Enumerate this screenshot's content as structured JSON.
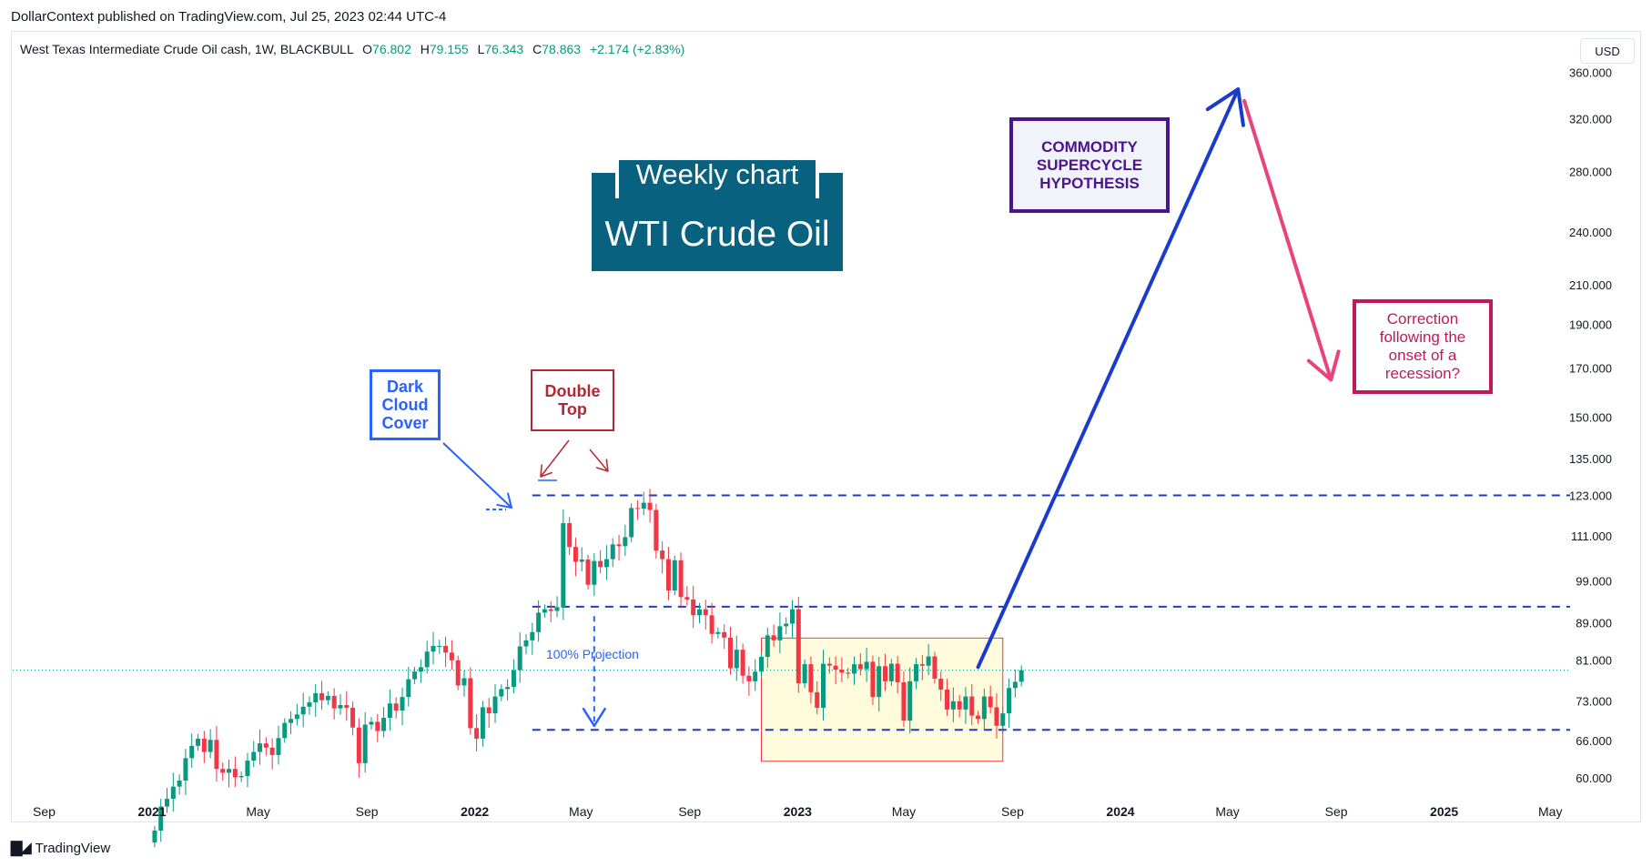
{
  "header": {
    "published_line": "DollarContext published on TradingView.com, Jul 25, 2023 02:44 UTC-4",
    "symbol": "West Texas Intermediate Crude Oil cash, 1W, BLACKBULL",
    "ohlc": {
      "o_label": "O",
      "o_value": "76.802",
      "h_label": "H",
      "h_value": "79.155",
      "l_label": "L",
      "l_value": "76.343",
      "c_label": "C",
      "c_value": "78.863",
      "change": "+2.174 (+2.83%)"
    },
    "currency_button": "USD"
  },
  "footer": {
    "logo_mark": "𝟭𝟳",
    "logo_text": "TradingView"
  },
  "title_box": {
    "subtitle": "Weekly chart",
    "title": "WTI Crude Oil"
  },
  "annotations": {
    "dark_cloud": "Dark\nCloud\nCover",
    "double_top": "Double\nTop",
    "supercycle": "COMMODITY\nSUPERCYCLE\nHYPOTHESIS",
    "correction": "Correction\nfollowing the\nonset of a\nrecession?",
    "projection": "100% Projection"
  },
  "colors": {
    "up": "#089981",
    "down": "#f23645",
    "level_line": "#1a3bcc",
    "supercycle_arrow": "#1a3bcc",
    "correction_arrow": "#e8437a",
    "range_fill": "#fffbdc",
    "range_border": "#f23645",
    "title_bg": "#08617f"
  },
  "chart_data": {
    "type": "candlestick",
    "scale": "log",
    "ylim": [
      56,
      375
    ],
    "y_ticks": [
      "360.000",
      "320.000",
      "280.000",
      "240.000",
      "210.000",
      "190.000",
      "170.000",
      "150.000",
      "135.000",
      "123.000",
      "111.000",
      "99.000",
      "89.000",
      "81.000",
      "73.000",
      "66.000",
      "60.000"
    ],
    "x_ticks": [
      {
        "label": "Sep",
        "bold": false,
        "date": "2020-09-01"
      },
      {
        "label": "2021",
        "bold": true,
        "date": "2021-01-01"
      },
      {
        "label": "May",
        "bold": false,
        "date": "2021-05-01"
      },
      {
        "label": "Sep",
        "bold": false,
        "date": "2021-09-01"
      },
      {
        "label": "2022",
        "bold": true,
        "date": "2022-01-01"
      },
      {
        "label": "May",
        "bold": false,
        "date": "2022-05-01"
      },
      {
        "label": "Sep",
        "bold": false,
        "date": "2022-09-01"
      },
      {
        "label": "2023",
        "bold": true,
        "date": "2023-01-01"
      },
      {
        "label": "May",
        "bold": false,
        "date": "2023-05-01"
      },
      {
        "label": "Sep",
        "bold": false,
        "date": "2023-09-01"
      },
      {
        "label": "2024",
        "bold": true,
        "date": "2024-01-01"
      },
      {
        "label": "May",
        "bold": false,
        "date": "2024-05-01"
      },
      {
        "label": "Sep",
        "bold": false,
        "date": "2024-09-01"
      },
      {
        "label": "2025",
        "bold": true,
        "date": "2025-01-01"
      },
      {
        "label": "May",
        "bold": false,
        "date": "2025-05-01"
      }
    ],
    "start_date": "2021-01-04",
    "closes": [
      52.5,
      55.8,
      56.9,
      58.7,
      59.6,
      63.1,
      65.1,
      66.3,
      64.1,
      66.1,
      61.4,
      60.8,
      61.4,
      60.1,
      60.3,
      62.7,
      64.1,
      65.5,
      64.8,
      63.6,
      66.4,
      69.0,
      69.7,
      70.5,
      71.9,
      72.7,
      74.4,
      73.1,
      73.9,
      71.6,
      72.2,
      71.7,
      68.2,
      62.3,
      68.7,
      69.2,
      67.6,
      69.9,
      72.5,
      71.2,
      73.7,
      77.1,
      78.6,
      79.5,
      82.7,
      83.9,
      83.9,
      82.5,
      80.9,
      75.9,
      77.3,
      68.1,
      66.3,
      71.8,
      70.7,
      73.8,
      75.2,
      75.6,
      78.9,
      83.8,
      85.1,
      86.9,
      91.3,
      92.1,
      91.7,
      92.6,
      114.6,
      107.9,
      103.9,
      104.5,
      98.0,
      104.1,
      102.5,
      104.6,
      108.6,
      108.1,
      110.6,
      119.1,
      118.9,
      120.7,
      118.5,
      106.9,
      104.6,
      96.6,
      104.3,
      95.0,
      94.4,
      90.7,
      92.1,
      90.7,
      86.5,
      86.9,
      85.7,
      79.3,
      83.1,
      77.8,
      76.7,
      78.6,
      81.6,
      86.2,
      85.1,
      88.2,
      88.8,
      92.1,
      76.3,
      80.1,
      74.6,
      71.7,
      80.2,
      79.8,
      79.0,
      78.4,
      78.2,
      80.1,
      79.1,
      80.6,
      73.7,
      79.7,
      76.7,
      80.2,
      76.5,
      69.4,
      76.7,
      80.1,
      79.8,
      81.7,
      77.2,
      75.1,
      71.4,
      72.9,
      71.4,
      73.8,
      70.3,
      69.7,
      73.8,
      71.8,
      68.5,
      70.7,
      75.4,
      76.6,
      78.9
    ],
    "levels": [
      123,
      92.7,
      67.8
    ],
    "range_box": {
      "x_start": "2022-11-21",
      "x_end": "2023-08-21",
      "y_low": 62.6,
      "y_high": 85.6
    },
    "projection_arrow": {
      "x": "2022-05-16",
      "y_from": 90.5,
      "y_to": 68.5
    },
    "supercycle_arrow": {
      "from": [
        "2023-07-24",
        79.5
      ],
      "to": [
        "2024-05-13",
        345
      ]
    },
    "correction_arrow": {
      "from": [
        "2024-05-20",
        335
      ],
      "to": [
        "2024-08-26",
        165
      ]
    }
  }
}
